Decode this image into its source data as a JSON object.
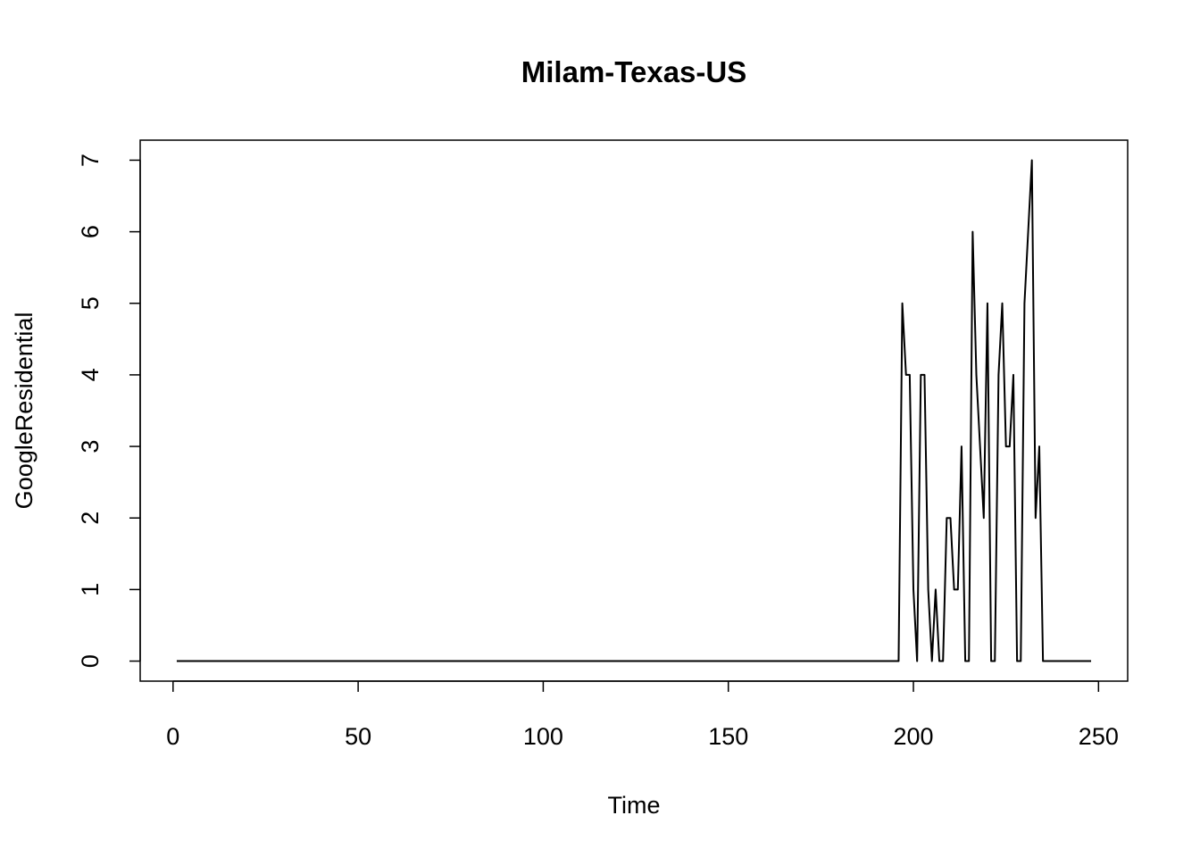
{
  "chart_data": {
    "type": "line",
    "title": "Milam-Texas-US",
    "x_label": "Time",
    "y_label": "GoogleResidential",
    "x": [
      1,
      2,
      3,
      4,
      5,
      6,
      7,
      8,
      9,
      10,
      11,
      12,
      13,
      14,
      15,
      16,
      17,
      18,
      19,
      20,
      21,
      22,
      23,
      24,
      25,
      26,
      27,
      28,
      29,
      30,
      31,
      32,
      33,
      34,
      35,
      36,
      37,
      38,
      39,
      40,
      41,
      42,
      43,
      44,
      45,
      46,
      47,
      48,
      49,
      50,
      51,
      52,
      53,
      54,
      55,
      56,
      57,
      58,
      59,
      60,
      61,
      62,
      63,
      64,
      65,
      66,
      67,
      68,
      69,
      70,
      71,
      72,
      73,
      74,
      75,
      76,
      77,
      78,
      79,
      80,
      81,
      82,
      83,
      84,
      85,
      86,
      87,
      88,
      89,
      90,
      91,
      92,
      93,
      94,
      95,
      96,
      97,
      98,
      99,
      100,
      101,
      102,
      103,
      104,
      105,
      106,
      107,
      108,
      109,
      110,
      111,
      112,
      113,
      114,
      115,
      116,
      117,
      118,
      119,
      120,
      121,
      122,
      123,
      124,
      125,
      126,
      127,
      128,
      129,
      130,
      131,
      132,
      133,
      134,
      135,
      136,
      137,
      138,
      139,
      140,
      141,
      142,
      143,
      144,
      145,
      146,
      147,
      148,
      149,
      150,
      151,
      152,
      153,
      154,
      155,
      156,
      157,
      158,
      159,
      160,
      161,
      162,
      163,
      164,
      165,
      166,
      167,
      168,
      169,
      170,
      171,
      172,
      173,
      174,
      175,
      176,
      177,
      178,
      179,
      180,
      181,
      182,
      183,
      184,
      185,
      186,
      187,
      188,
      189,
      190,
      191,
      192,
      193,
      194,
      195,
      196,
      197,
      198,
      199,
      200,
      201,
      202,
      203,
      204,
      205,
      206,
      207,
      208,
      209,
      210,
      211,
      212,
      213,
      214,
      215,
      216,
      217,
      218,
      219,
      220,
      221,
      222,
      223,
      224,
      225,
      226,
      227,
      228,
      229,
      230,
      231,
      232,
      233,
      234,
      235,
      236,
      237,
      238,
      239,
      240,
      241,
      242,
      243,
      244,
      245,
      246,
      247,
      248
    ],
    "series": [
      {
        "name": "GoogleResidential",
        "color": "#000000",
        "values": [
          0,
          0,
          0,
          0,
          0,
          0,
          0,
          0,
          0,
          0,
          0,
          0,
          0,
          0,
          0,
          0,
          0,
          0,
          0,
          0,
          0,
          0,
          0,
          0,
          0,
          0,
          0,
          0,
          0,
          0,
          0,
          0,
          0,
          0,
          0,
          0,
          0,
          0,
          0,
          0,
          0,
          0,
          0,
          0,
          0,
          0,
          0,
          0,
          0,
          0,
          0,
          0,
          0,
          0,
          0,
          0,
          0,
          0,
          0,
          0,
          0,
          0,
          0,
          0,
          0,
          0,
          0,
          0,
          0,
          0,
          0,
          0,
          0,
          0,
          0,
          0,
          0,
          0,
          0,
          0,
          0,
          0,
          0,
          0,
          0,
          0,
          0,
          0,
          0,
          0,
          0,
          0,
          0,
          0,
          0,
          0,
          0,
          0,
          0,
          0,
          0,
          0,
          0,
          0,
          0,
          0,
          0,
          0,
          0,
          0,
          0,
          0,
          0,
          0,
          0,
          0,
          0,
          0,
          0,
          0,
          0,
          0,
          0,
          0,
          0,
          0,
          0,
          0,
          0,
          0,
          0,
          0,
          0,
          0,
          0,
          0,
          0,
          0,
          0,
          0,
          0,
          0,
          0,
          0,
          0,
          0,
          0,
          0,
          0,
          0,
          0,
          0,
          0,
          0,
          0,
          0,
          0,
          0,
          0,
          0,
          0,
          0,
          0,
          0,
          0,
          0,
          0,
          0,
          0,
          0,
          0,
          0,
          0,
          0,
          0,
          0,
          0,
          0,
          0,
          0,
          0,
          0,
          0,
          0,
          0,
          0,
          0,
          0,
          0,
          0,
          0,
          0,
          0,
          0,
          0,
          0,
          5,
          4,
          4,
          1,
          0,
          4,
          4,
          1,
          0,
          1,
          0,
          0,
          2,
          2,
          1,
          1,
          3,
          0,
          0,
          6,
          4,
          3,
          2,
          5,
          0,
          0,
          4,
          5,
          3,
          3,
          4,
          0,
          0,
          5,
          6,
          7,
          2,
          3,
          0,
          0,
          0,
          0,
          0,
          0,
          0,
          0,
          0,
          0,
          0,
          0,
          0,
          0
        ]
      }
    ],
    "xlim": [
      -8.88,
      257.88
    ],
    "ylim": [
      -0.28,
      7.28
    ],
    "xticks": [
      0,
      50,
      100,
      150,
      200,
      250
    ],
    "yticks": [
      0,
      1,
      2,
      3,
      4,
      5,
      6,
      7
    ]
  }
}
